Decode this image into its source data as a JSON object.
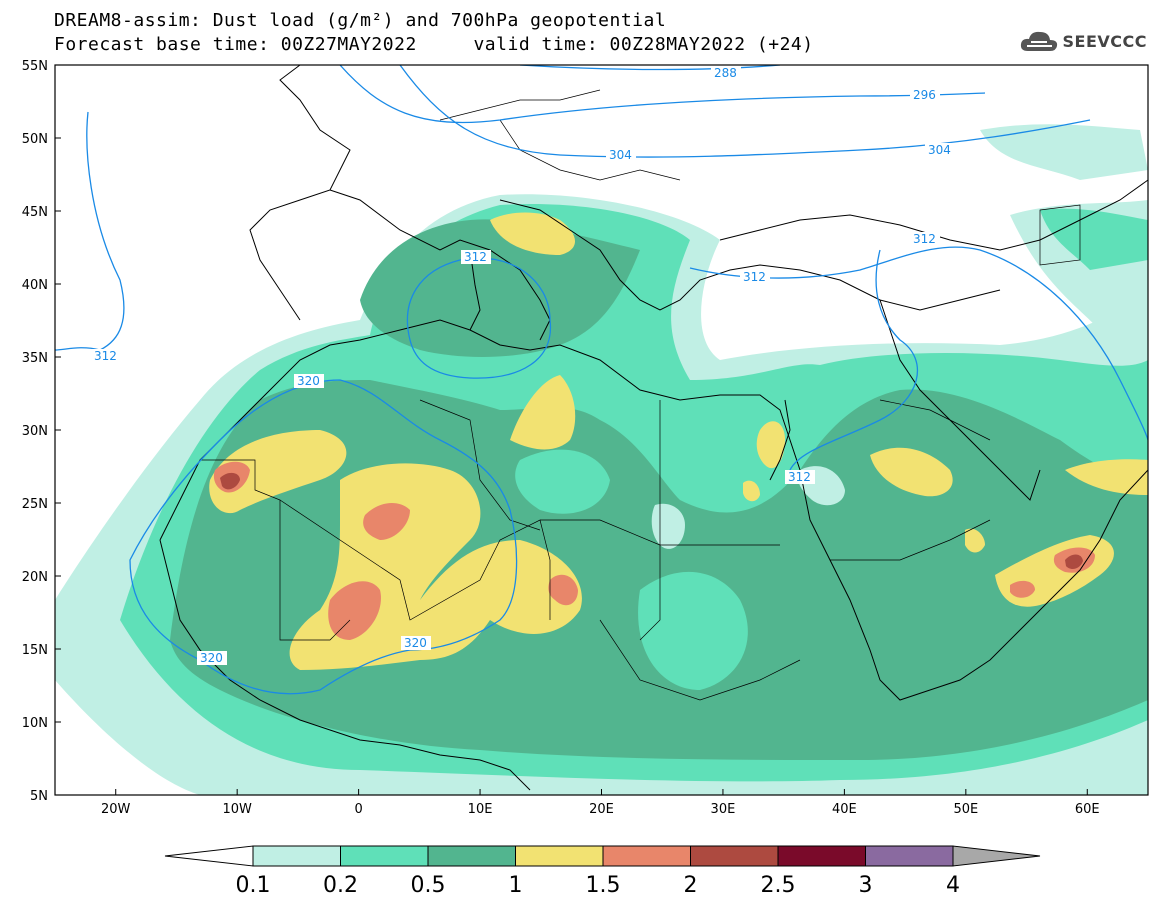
{
  "title": {
    "line1": "DREAM8-assim: Dust load (g/m²) and 700hPa geopotential",
    "line2": "Forecast base time: 00Z27MAY2022     valid time: 00Z28MAY2022 (+24)"
  },
  "logo": {
    "text": "SEEVCCC",
    "icon": "cloud-icon"
  },
  "map": {
    "lon_range": [
      -25,
      65
    ],
    "lat_range": [
      5,
      55
    ],
    "x_ticks": [
      "20W",
      "10W",
      "0",
      "10E",
      "20E",
      "30E",
      "40E",
      "50E",
      "60E"
    ],
    "y_ticks": [
      "55N",
      "50N",
      "45N",
      "40N",
      "35N",
      "30N",
      "25N",
      "20N",
      "15N",
      "10N",
      "5N"
    ]
  },
  "contours": [
    {
      "label": "288"
    },
    {
      "label": "296"
    },
    {
      "label": "304"
    },
    {
      "label": "304"
    },
    {
      "label": "312"
    },
    {
      "label": "312"
    },
    {
      "label": "312"
    },
    {
      "label": "312"
    },
    {
      "label": "312"
    },
    {
      "label": "320"
    },
    {
      "label": "320"
    },
    {
      "label": "320"
    }
  ],
  "colorbar": {
    "labels": [
      "0.1",
      "0.2",
      "0.5",
      "1",
      "1.5",
      "2",
      "2.5",
      "3",
      "4"
    ],
    "colors": [
      "#c0efe4",
      "#5fe0b8",
      "#52b58f",
      "#f2e272",
      "#e8866a",
      "#ad4a40",
      "#7a0a2a",
      "#8a6aa0",
      "#a8a8a8"
    ]
  }
}
